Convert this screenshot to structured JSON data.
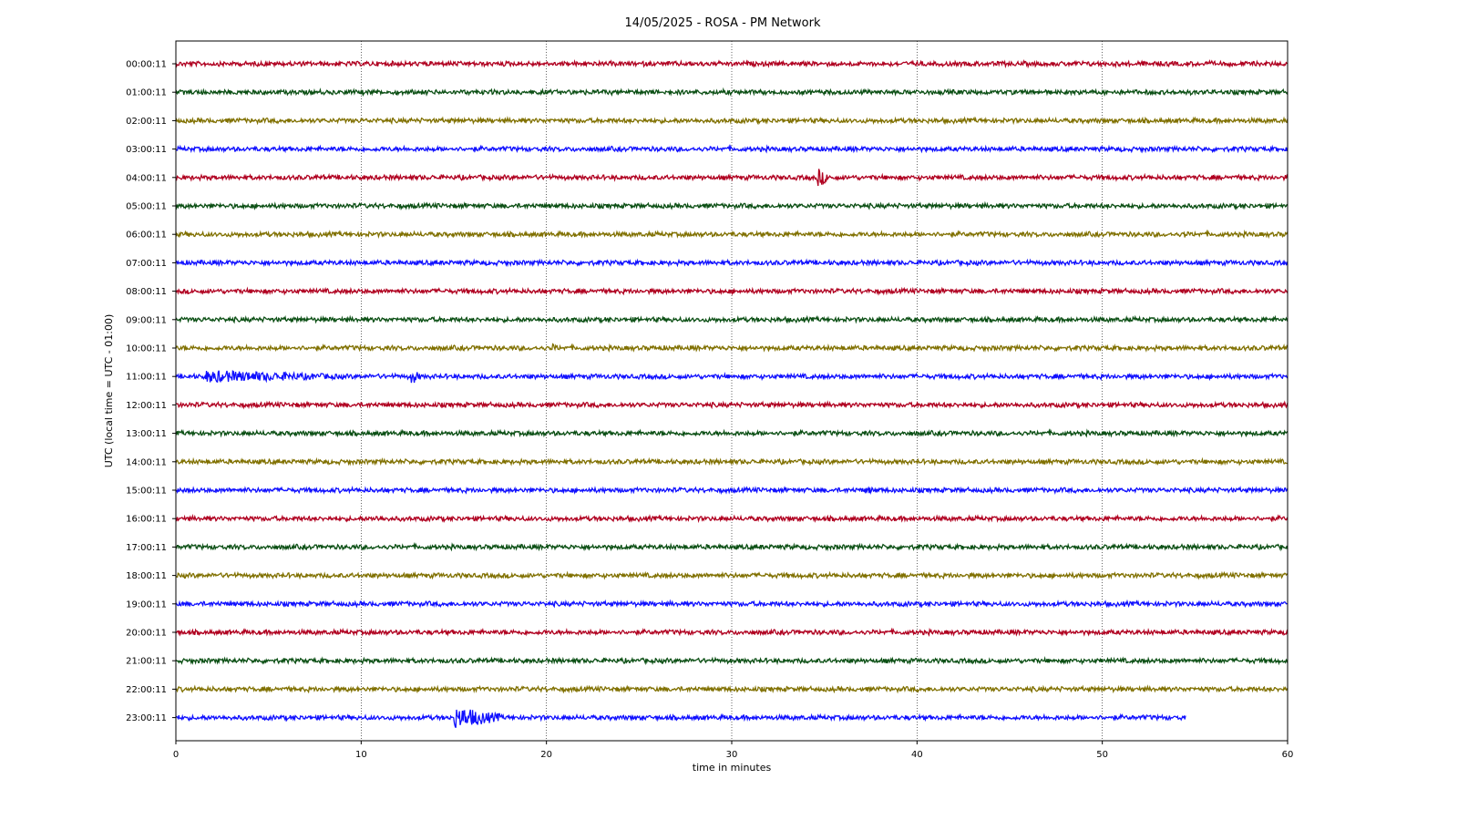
{
  "chart_data": {
    "type": "line",
    "title": "14/05/2025 - ROSA - PM Network",
    "xlabel": "time in minutes",
    "ylabel": "UTC (local time = UTC - 01:00)",
    "xlim": [
      0,
      60
    ],
    "x_ticks": [
      "0",
      "10",
      "20",
      "30",
      "40",
      "50",
      "60"
    ],
    "grid": "vertical dotted",
    "colors": [
      "#b00020",
      "#0b4f14",
      "#807000",
      "#1010ff"
    ],
    "series": [
      {
        "name": "00:00:11",
        "color": "#b00020",
        "x_end": 60,
        "events": []
      },
      {
        "name": "01:00:11",
        "color": "#0b4f14",
        "x_end": 60,
        "events": []
      },
      {
        "name": "02:00:11",
        "color": "#807000",
        "x_end": 60,
        "events": []
      },
      {
        "name": "03:00:11",
        "color": "#1010ff",
        "x_end": 60,
        "events": []
      },
      {
        "name": "04:00:11",
        "color": "#b00020",
        "x_end": 60,
        "events": [
          {
            "t": 34.6,
            "amp": 11,
            "dur": 0.6
          }
        ]
      },
      {
        "name": "05:00:11",
        "color": "#0b4f14",
        "x_end": 60,
        "events": []
      },
      {
        "name": "06:00:11",
        "color": "#807000",
        "x_end": 60,
        "events": [
          {
            "t": 54.4,
            "amp": 5,
            "dur": 0.3
          }
        ]
      },
      {
        "name": "07:00:11",
        "color": "#1010ff",
        "x_end": 60,
        "events": []
      },
      {
        "name": "08:00:11",
        "color": "#b00020",
        "x_end": 60,
        "events": []
      },
      {
        "name": "09:00:11",
        "color": "#0b4f14",
        "x_end": 60,
        "events": []
      },
      {
        "name": "10:00:11",
        "color": "#807000",
        "x_end": 60,
        "events": [
          {
            "t": 20.2,
            "amp": 6,
            "dur": 0.4
          }
        ]
      },
      {
        "name": "11:00:11",
        "color": "#1010ff",
        "x_end": 60,
        "events": [
          {
            "t": 1.6,
            "amp": 7,
            "dur": 7.5
          },
          {
            "t": 12.7,
            "amp": 9,
            "dur": 0.5
          }
        ]
      },
      {
        "name": "12:00:11",
        "color": "#b00020",
        "x_end": 60,
        "events": []
      },
      {
        "name": "13:00:11",
        "color": "#0b4f14",
        "x_end": 60,
        "events": []
      },
      {
        "name": "14:00:11",
        "color": "#807000",
        "x_end": 60,
        "events": []
      },
      {
        "name": "15:00:11",
        "color": "#1010ff",
        "x_end": 60,
        "events": [
          {
            "t": 37.2,
            "amp": 4,
            "dur": 1.0
          }
        ]
      },
      {
        "name": "16:00:11",
        "color": "#b00020",
        "x_end": 60,
        "events": [
          {
            "t": 10.8,
            "amp": 4,
            "dur": 1.0
          }
        ]
      },
      {
        "name": "17:00:11",
        "color": "#0b4f14",
        "x_end": 60,
        "events": []
      },
      {
        "name": "18:00:11",
        "color": "#807000",
        "x_end": 60,
        "events": []
      },
      {
        "name": "19:00:11",
        "color": "#1010ff",
        "x_end": 60,
        "events": []
      },
      {
        "name": "20:00:11",
        "color": "#b00020",
        "x_end": 60,
        "events": []
      },
      {
        "name": "21:00:11",
        "color": "#0b4f14",
        "x_end": 60,
        "events": []
      },
      {
        "name": "22:00:11",
        "color": "#807000",
        "x_end": 60,
        "events": []
      },
      {
        "name": "23:00:11",
        "color": "#1010ff",
        "x_end": 54.5,
        "events": [
          {
            "t": 15.0,
            "amp": 12,
            "dur": 2.5
          }
        ]
      }
    ]
  }
}
